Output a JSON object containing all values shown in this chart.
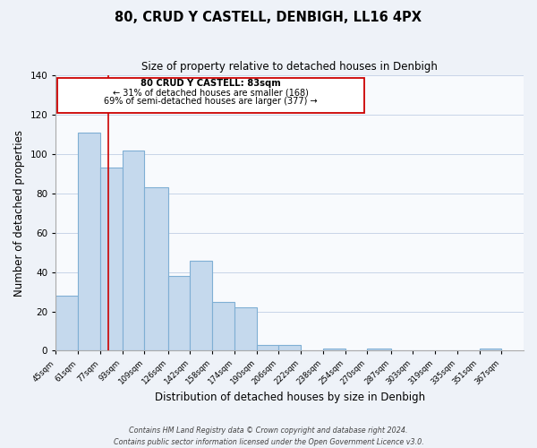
{
  "title": "80, CRUD Y CASTELL, DENBIGH, LL16 4PX",
  "subtitle": "Size of property relative to detached houses in Denbigh",
  "xlabel": "Distribution of detached houses by size in Denbigh",
  "ylabel": "Number of detached properties",
  "bar_left_edges": [
    45,
    61,
    77,
    93,
    109,
    126,
    142,
    158,
    174,
    190,
    206,
    222,
    238,
    254,
    270,
    287,
    303,
    319,
    335,
    351
  ],
  "bar_heights": [
    28,
    111,
    93,
    102,
    83,
    38,
    46,
    25,
    22,
    3,
    3,
    0,
    1,
    0,
    1,
    0,
    0,
    0,
    0,
    1
  ],
  "bar_widths": [
    16,
    16,
    16,
    16,
    17,
    16,
    16,
    16,
    16,
    16,
    16,
    16,
    16,
    16,
    17,
    16,
    16,
    16,
    16,
    16
  ],
  "tick_labels": [
    "45sqm",
    "61sqm",
    "77sqm",
    "93sqm",
    "109sqm",
    "126sqm",
    "142sqm",
    "158sqm",
    "174sqm",
    "190sqm",
    "206sqm",
    "222sqm",
    "238sqm",
    "254sqm",
    "270sqm",
    "287sqm",
    "303sqm",
    "319sqm",
    "335sqm",
    "351sqm",
    "367sqm"
  ],
  "tick_positions": [
    45,
    61,
    77,
    93,
    109,
    126,
    142,
    158,
    174,
    190,
    206,
    222,
    238,
    254,
    270,
    287,
    303,
    319,
    335,
    351,
    367
  ],
  "bar_color": "#c5d9ed",
  "bar_edge_color": "#7fafd4",
  "highlight_x": 83,
  "highlight_color": "#cc0000",
  "annotation_title": "80 CRUD Y CASTELL: 83sqm",
  "annotation_line1": "← 31% of detached houses are smaller (168)",
  "annotation_line2": "69% of semi-detached houses are larger (377) →",
  "ylim": [
    0,
    140
  ],
  "xlim": [
    45,
    383
  ],
  "yticks": [
    0,
    20,
    40,
    60,
    80,
    100,
    120,
    140
  ],
  "footer_line1": "Contains HM Land Registry data © Crown copyright and database right 2024.",
  "footer_line2": "Contains public sector information licensed under the Open Government Licence v3.0.",
  "background_color": "#eef2f8",
  "plot_bg_color": "#f8fafd",
  "grid_color": "#c8d4e8"
}
